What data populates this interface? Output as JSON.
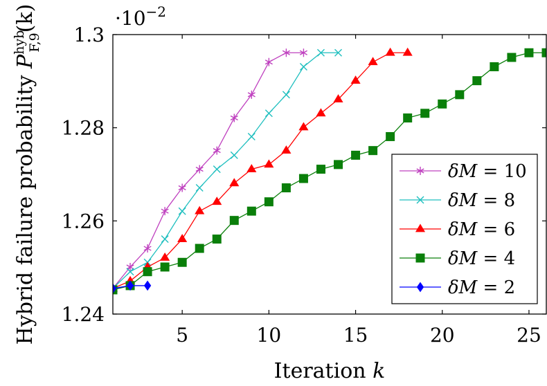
{
  "chart_data": {
    "type": "line",
    "xlabel_text": "Iteration ",
    "xlabel_var": "k",
    "ylabel_text": "Hybrid failure probability ",
    "ylabel_var": "P",
    "ylabel_sup": "hyb",
    "ylabel_sub": "F,9",
    "ylabel_arg": "(k)",
    "y_scale_note_base": "·10",
    "y_scale_note_exp": "−2",
    "xlim": [
      1,
      26
    ],
    "ylim": [
      1.24,
      1.3
    ],
    "x_ticks": [
      5,
      10,
      15,
      20,
      25
    ],
    "x_tick_labels": [
      "5",
      "10",
      "15",
      "20",
      "25"
    ],
    "y_ticks": [
      1.24,
      1.26,
      1.28,
      1.3
    ],
    "y_tick_labels": [
      "1.24",
      "1.26",
      "1.28",
      "1.3"
    ],
    "legend_position": "bottom-right",
    "series": [
      {
        "name": "δM = 10",
        "legend_greek": "δ",
        "legend_var": "M",
        "legend_rest": " = 10",
        "color": "#bf40bf",
        "marker": "asterisk",
        "x": [
          1,
          2,
          3,
          4,
          5,
          6,
          7,
          8,
          9,
          10,
          11,
          12
        ],
        "y": [
          1.2455,
          1.2501,
          1.2541,
          1.2621,
          1.2671,
          1.2711,
          1.2751,
          1.2821,
          1.2871,
          1.2941,
          1.2961,
          1.2961
        ]
      },
      {
        "name": "δM = 8",
        "legend_greek": "δ",
        "legend_var": "M",
        "legend_rest": " = 8",
        "color": "#1fbfbf",
        "marker": "x",
        "x": [
          1,
          2,
          3,
          4,
          5,
          6,
          7,
          8,
          9,
          10,
          11,
          12,
          13,
          14
        ],
        "y": [
          1.2455,
          1.2491,
          1.2511,
          1.2561,
          1.2621,
          1.2671,
          1.2711,
          1.2741,
          1.2781,
          1.2831,
          1.2871,
          1.2931,
          1.2961,
          1.2961
        ]
      },
      {
        "name": "δM = 6",
        "legend_greek": "δ",
        "legend_var": "M",
        "legend_rest": " = 6",
        "color": "#ff0000",
        "marker": "triangle",
        "x": [
          1,
          2,
          3,
          4,
          5,
          6,
          7,
          8,
          9,
          10,
          11,
          12,
          13,
          14,
          15,
          16,
          17,
          18
        ],
        "y": [
          1.2455,
          1.2471,
          1.2501,
          1.2521,
          1.2561,
          1.2621,
          1.2641,
          1.2681,
          1.2711,
          1.2721,
          1.2751,
          1.2801,
          1.2831,
          1.2861,
          1.2901,
          1.2941,
          1.2961,
          1.2961
        ]
      },
      {
        "name": "δM = 4",
        "legend_greek": "δ",
        "legend_var": "M",
        "legend_rest": " = 4",
        "color": "#0a7f0a",
        "marker": "square",
        "x": [
          1,
          2,
          3,
          4,
          5,
          6,
          7,
          8,
          9,
          10,
          11,
          12,
          13,
          14,
          15,
          16,
          17,
          18,
          19,
          20,
          21,
          22,
          23,
          24,
          25,
          26
        ],
        "y": [
          1.2452,
          1.2461,
          1.2491,
          1.2501,
          1.2511,
          1.2541,
          1.2561,
          1.2601,
          1.2621,
          1.2641,
          1.2671,
          1.2691,
          1.2711,
          1.2721,
          1.2741,
          1.2751,
          1.2781,
          1.2821,
          1.2831,
          1.2851,
          1.2871,
          1.2901,
          1.2931,
          1.2951,
          1.2961,
          1.2961
        ]
      },
      {
        "name": "δM = 2",
        "legend_greek": "δ",
        "legend_var": "M",
        "legend_rest": " = 2",
        "color": "#0000ff",
        "marker": "diamond",
        "x": [
          1,
          2,
          3
        ],
        "y": [
          1.2455,
          1.2461,
          1.2461
        ]
      }
    ]
  }
}
